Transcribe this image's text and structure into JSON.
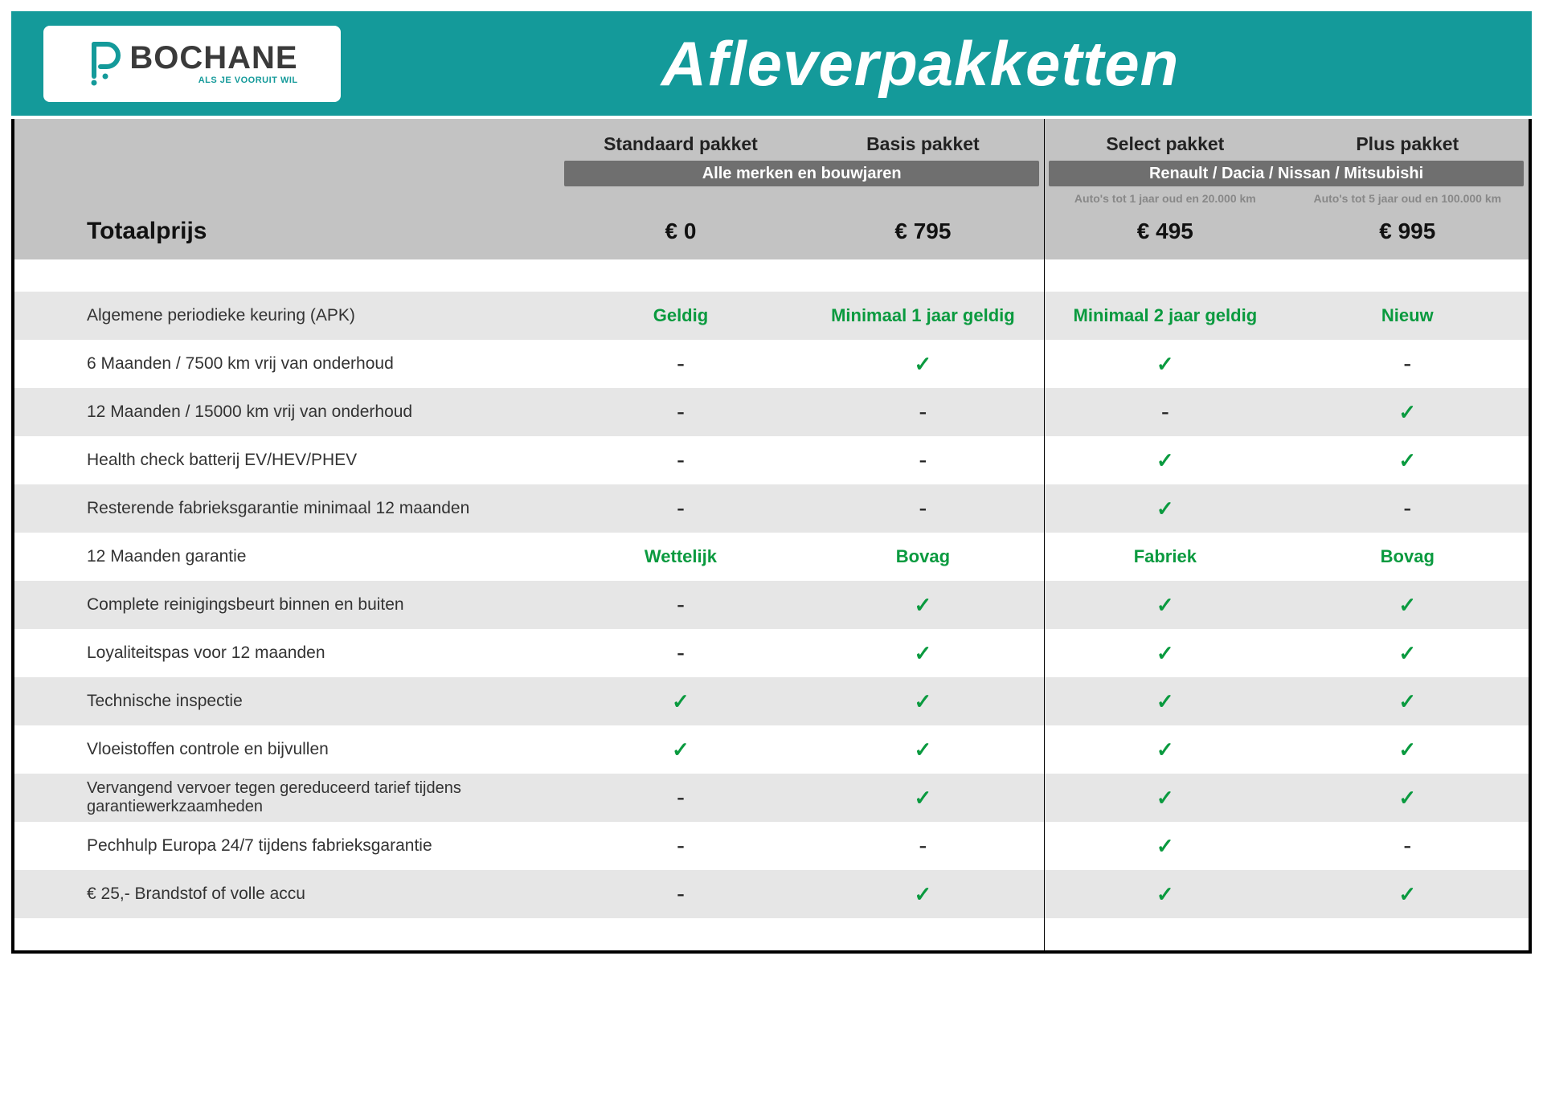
{
  "colors": {
    "teal": "#149a9a",
    "header_grey": "#c3c3c3",
    "row_grey": "#e6e6e6",
    "group_bar": "#6f6f6f",
    "green": "#0a9a3f",
    "subnote": "#888888"
  },
  "logo": {
    "brand": "BOCHANE",
    "tagline": "ALS JE VOORUIT WIL"
  },
  "title": "Afleverpakketten",
  "packages": [
    {
      "name": "Standaard pakket",
      "price": "€ 0",
      "subnote": ""
    },
    {
      "name": "Basis pakket",
      "price": "€ 795",
      "subnote": ""
    },
    {
      "name": "Select pakket",
      "price": "€ 495",
      "subnote": "Auto's tot 1 jaar oud en 20.000 km"
    },
    {
      "name": "Plus pakket",
      "price": "€ 995",
      "subnote": "Auto's tot 5 jaar oud en 100.000 km"
    }
  ],
  "group_bars": [
    "Alle merken en bouwjaren",
    "Renault / Dacia / Nissan / Mitsubishi"
  ],
  "totalprice_label": "Totaalprijs",
  "features": [
    {
      "label": "Algemene periodieke keuring (APK)",
      "bg": "grey",
      "cells": [
        {
          "type": "text",
          "text": "Geldig"
        },
        {
          "type": "text",
          "text": "Minimaal 1 jaar geldig"
        },
        {
          "type": "text",
          "text": "Minimaal 2 jaar geldig"
        },
        {
          "type": "text",
          "text": "Nieuw"
        }
      ]
    },
    {
      "label": "6 Maanden / 7500 km vrij van onderhoud",
      "bg": "white",
      "cells": [
        {
          "type": "dash"
        },
        {
          "type": "check"
        },
        {
          "type": "check"
        },
        {
          "type": "dash"
        }
      ]
    },
    {
      "label": "12 Maanden / 15000 km vrij van onderhoud",
      "bg": "grey",
      "cells": [
        {
          "type": "dash"
        },
        {
          "type": "dash"
        },
        {
          "type": "dash"
        },
        {
          "type": "check"
        }
      ]
    },
    {
      "label": "Health check batterij EV/HEV/PHEV",
      "bg": "white",
      "cells": [
        {
          "type": "dash"
        },
        {
          "type": "dash"
        },
        {
          "type": "check"
        },
        {
          "type": "check"
        }
      ]
    },
    {
      "label": "Resterende fabrieksgarantie minimaal 12 maanden",
      "bg": "grey",
      "cells": [
        {
          "type": "dash"
        },
        {
          "type": "dash"
        },
        {
          "type": "check"
        },
        {
          "type": "dash"
        }
      ]
    },
    {
      "label": "12 Maanden  garantie",
      "bg": "white",
      "cells": [
        {
          "type": "text",
          "text": "Wettelijk"
        },
        {
          "type": "text",
          "text": "Bovag"
        },
        {
          "type": "text",
          "text": "Fabriek"
        },
        {
          "type": "text",
          "text": "Bovag"
        }
      ]
    },
    {
      "label": "Complete reinigingsbeurt binnen en buiten",
      "bg": "grey",
      "cells": [
        {
          "type": "dash"
        },
        {
          "type": "check"
        },
        {
          "type": "check"
        },
        {
          "type": "check"
        }
      ]
    },
    {
      "label": "Loyaliteitspas voor 12 maanden",
      "bg": "white",
      "cells": [
        {
          "type": "dash"
        },
        {
          "type": "check"
        },
        {
          "type": "check"
        },
        {
          "type": "check"
        }
      ]
    },
    {
      "label": "Technische inspectie",
      "bg": "grey",
      "cells": [
        {
          "type": "check"
        },
        {
          "type": "check"
        },
        {
          "type": "check"
        },
        {
          "type": "check"
        }
      ]
    },
    {
      "label": "Vloeistoffen controle en bijvullen",
      "bg": "white",
      "cells": [
        {
          "type": "check"
        },
        {
          "type": "check"
        },
        {
          "type": "check"
        },
        {
          "type": "check"
        }
      ]
    },
    {
      "label": "Vervangend vervoer tegen gereduceerd tarief tijdens garantiewerkzaamheden",
      "bg": "grey",
      "two_line": true,
      "cells": [
        {
          "type": "dash"
        },
        {
          "type": "check"
        },
        {
          "type": "check"
        },
        {
          "type": "check"
        }
      ]
    },
    {
      "label": "Pechhulp Europa 24/7 tijdens fabrieksgarantie",
      "bg": "white",
      "cells": [
        {
          "type": "dash"
        },
        {
          "type": "dash"
        },
        {
          "type": "check"
        },
        {
          "type": "dash"
        }
      ]
    },
    {
      "label": "€ 25,- Brandstof of  volle accu",
      "bg": "grey",
      "cells": [
        {
          "type": "dash"
        },
        {
          "type": "check"
        },
        {
          "type": "check"
        },
        {
          "type": "check"
        }
      ]
    }
  ]
}
